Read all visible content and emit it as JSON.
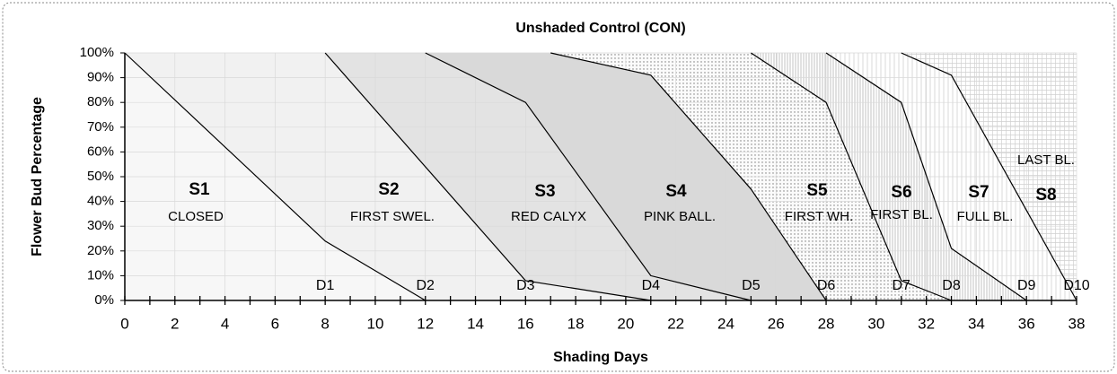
{
  "chart_data": {
    "type": "line",
    "title": "Unshaded Control (CON)",
    "x_label": "Shading Days",
    "y_label": "Flower Bud Percentage",
    "xlim": [
      0,
      38
    ],
    "ylim": [
      0,
      100
    ],
    "xticks": [
      0,
      2,
      4,
      6,
      8,
      10,
      12,
      14,
      16,
      18,
      20,
      22,
      24,
      26,
      28,
      30,
      32,
      34,
      36,
      38
    ],
    "yticks": [
      {
        "value": 0,
        "label": "0%"
      },
      {
        "value": 10,
        "label": "10%"
      },
      {
        "value": 20,
        "label": "20%"
      },
      {
        "value": 30,
        "label": "30%"
      },
      {
        "value": 40,
        "label": "40%"
      },
      {
        "value": 50,
        "label": "50%"
      },
      {
        "value": 60,
        "label": "60%"
      },
      {
        "value": 70,
        "label": "70%"
      },
      {
        "value": 80,
        "label": "80%"
      },
      {
        "value": 90,
        "label": "90%"
      },
      {
        "value": 100,
        "label": "100%"
      }
    ],
    "grid": true,
    "line_color": "#000000",
    "series": [
      {
        "x": [
          0,
          8,
          12
        ],
        "values": [
          100,
          24,
          0
        ]
      },
      {
        "x": [
          8,
          16,
          21
        ],
        "values": [
          100,
          8,
          0
        ]
      },
      {
        "x": [
          12,
          16,
          21,
          25
        ],
        "values": [
          100,
          80,
          10,
          0
        ]
      },
      {
        "x": [
          17,
          21,
          25,
          28
        ],
        "values": [
          100,
          91,
          45,
          0
        ]
      },
      {
        "x": [
          25,
          28,
          31,
          33
        ],
        "values": [
          100,
          80,
          8,
          0
        ]
      },
      {
        "x": [
          28,
          31,
          33,
          36
        ],
        "values": [
          100,
          80,
          21,
          0
        ]
      },
      {
        "x": [
          31,
          33,
          38
        ],
        "values": [
          100,
          91,
          0
        ]
      }
    ],
    "stages": [
      {
        "stage": "S1",
        "name": "CLOSED"
      },
      {
        "stage": "S2",
        "name": "FIRST SWEL."
      },
      {
        "stage": "S3",
        "name": "RED CALYX"
      },
      {
        "stage": "S4",
        "name": "PINK BALL."
      },
      {
        "stage": "S5",
        "name": "FIRST WH."
      },
      {
        "stage": "S6",
        "name": "FIRST BL."
      },
      {
        "stage": "S7",
        "name": "FULL BL."
      },
      {
        "stage": "S8",
        "name": "LAST BL."
      }
    ],
    "day_markers": [
      {
        "label": "D1",
        "x": 8
      },
      {
        "label": "D2",
        "x": 12
      },
      {
        "label": "D3",
        "x": 16
      },
      {
        "label": "D4",
        "x": 21
      },
      {
        "label": "D5",
        "x": 25
      },
      {
        "label": "D6",
        "x": 28
      },
      {
        "label": "D7",
        "x": 31
      },
      {
        "label": "D8",
        "x": 33
      },
      {
        "label": "D9",
        "x": 36
      },
      {
        "label": "D10",
        "x": 38
      }
    ]
  }
}
